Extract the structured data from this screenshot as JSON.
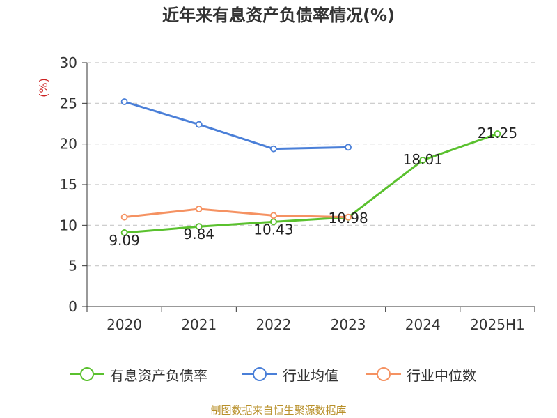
{
  "chart_data": {
    "type": "line",
    "title": "近年来有息资产负债率情况(%)",
    "ylabel": "(%)",
    "xlabel": "",
    "categories": [
      "2020",
      "2021",
      "2022",
      "2023",
      "2024",
      "2025H1"
    ],
    "yticks": [
      "0",
      "5",
      "10",
      "15",
      "20",
      "25",
      "30"
    ],
    "ylim": [
      0,
      30
    ],
    "grid": "horizontal dashed",
    "legend_position": "bottom",
    "series": [
      {
        "name": "有息资产负债率",
        "color": "#5ac12e",
        "values": [
          9.09,
          9.84,
          10.43,
          10.98,
          18.01,
          21.25
        ],
        "data_labels": [
          "9.09",
          "9.84",
          "10.43",
          "10.98",
          "18.01",
          "21.25"
        ]
      },
      {
        "name": "行业均值",
        "color": "#4a7fd8",
        "values": [
          25.2,
          22.4,
          19.4,
          19.6,
          null,
          null
        ]
      },
      {
        "name": "行业中位数",
        "color": "#f59262",
        "values": [
          11.0,
          12.0,
          11.2,
          11.0,
          null,
          null
        ]
      }
    ]
  },
  "source": "制图数据来自恒生聚源数据库"
}
